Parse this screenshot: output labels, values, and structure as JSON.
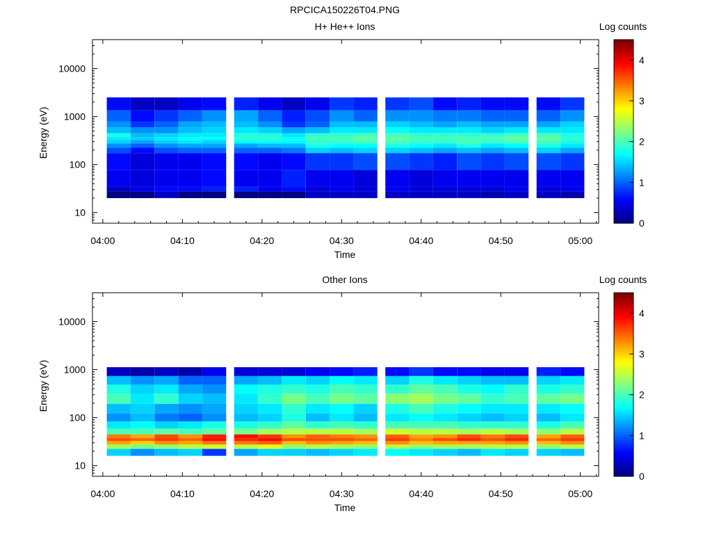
{
  "figure_title": "RPCICA150226T04.PNG",
  "chart_data": [
    {
      "type": "heatmap",
      "title": "H+ He++ Ions",
      "xlabel": "Time",
      "ylabel": "Energy (eV)",
      "y_scale": "log",
      "ylim": [
        6,
        40000
      ],
      "x_ticks": [
        "04:00",
        "04:10",
        "04:20",
        "04:30",
        "04:40",
        "04:50",
        "05:00"
      ],
      "y_ticks": [
        "10",
        "100",
        "1000",
        "10000"
      ],
      "colorbar": {
        "label": "Log counts",
        "ticks": [
          "0",
          "1",
          "2",
          "3",
          "4"
        ],
        "range": [
          0,
          4.5
        ]
      },
      "time_bins": [
        "04:02",
        "04:05",
        "04:08",
        "04:11",
        "04:14",
        "04:18",
        "04:21",
        "04:24",
        "04:27",
        "04:30",
        "04:33",
        "04:37",
        "04:40",
        "04:43",
        "04:46",
        "04:49",
        "04:52",
        "04:56",
        "04:59"
      ],
      "sample_grid": {
        "energy_ev": [
          2000,
          900,
          700,
          500,
          400,
          350,
          300,
          250,
          200,
          150,
          40,
          30,
          25
        ],
        "log_counts": [
          [
            0.6,
            1.0,
            1.2,
            1.4,
            1.8,
            1.6,
            1.5,
            1.2,
            0.9,
            0.6,
            0.5,
            0.3,
            0
          ],
          [
            0.3,
            0.6,
            0.8,
            1.2,
            1.4,
            1.5,
            1.3,
            1.0,
            0.6,
            0.4,
            0.4,
            0.5,
            0
          ],
          [
            0.3,
            0.8,
            1.0,
            1.2,
            1.5,
            1.6,
            1.5,
            1.2,
            0.9,
            0.5,
            0.5,
            0.6,
            0.3
          ],
          [
            0.5,
            1.0,
            1.3,
            1.4,
            1.6,
            1.7,
            1.6,
            1.3,
            1.0,
            0.5,
            0.5,
            0.6,
            0
          ],
          [
            0.6,
            1.2,
            1.4,
            1.5,
            1.6,
            1.7,
            1.5,
            1.3,
            1.0,
            0.6,
            0.6,
            0.7,
            0
          ],
          [
            0.7,
            1.3,
            1.4,
            1.6,
            1.8,
            1.9,
            1.7,
            1.3,
            1.0,
            0.6,
            0.5,
            0.7,
            0
          ],
          [
            0.5,
            1.0,
            1.2,
            1.5,
            1.8,
            1.9,
            1.7,
            1.4,
            1.0,
            0.5,
            0.5,
            0.5,
            0
          ],
          [
            0.3,
            0.7,
            0.8,
            1.3,
            1.6,
            1.7,
            1.7,
            1.4,
            1.1,
            0.6,
            0.7,
            0.6,
            0
          ],
          [
            0.5,
            0.9,
            1.0,
            1.4,
            1.9,
            2.0,
            1.9,
            1.8,
            1.5,
            0.8,
            0.5,
            0.4,
            0.3
          ],
          [
            0.8,
            1.2,
            1.4,
            1.6,
            1.9,
            2.0,
            1.9,
            1.7,
            1.4,
            0.8,
            0.5,
            0.5,
            0.3
          ],
          [
            0.7,
            1.0,
            1.4,
            1.6,
            2.0,
            2.1,
            2.0,
            1.7,
            1.5,
            0.9,
            0.4,
            0.4,
            0.3
          ],
          [
            0.8,
            1.2,
            1.5,
            1.7,
            2.0,
            2.1,
            2.0,
            1.8,
            1.5,
            0.9,
            0.5,
            0.5,
            0.3
          ],
          [
            0.9,
            1.2,
            1.4,
            1.6,
            1.9,
            2.0,
            1.9,
            1.7,
            1.4,
            0.8,
            0.4,
            0.4,
            0.3
          ],
          [
            0.6,
            1.1,
            1.3,
            1.6,
            1.9,
            2.0,
            1.9,
            1.6,
            1.3,
            0.7,
            0.5,
            0.4,
            0.3
          ],
          [
            0.7,
            1.1,
            1.4,
            1.6,
            1.9,
            2.0,
            2.0,
            1.8,
            1.4,
            0.9,
            0.5,
            0.4,
            0.3
          ],
          [
            0.6,
            1.0,
            1.3,
            1.5,
            1.9,
            2.0,
            1.9,
            1.6,
            1.3,
            0.8,
            0.5,
            0.4,
            0.2
          ],
          [
            0.6,
            1.0,
            1.3,
            1.6,
            2.0,
            2.1,
            2.0,
            1.7,
            1.4,
            0.9,
            0.5,
            0.5,
            0.3
          ],
          [
            0.6,
            1.0,
            1.3,
            1.6,
            2.0,
            2.1,
            2.0,
            1.8,
            1.5,
            0.9,
            0.5,
            0.4,
            0.3
          ],
          [
            0.8,
            1.2,
            1.5,
            1.6,
            1.8,
            1.9,
            1.8,
            1.6,
            1.3,
            0.8,
            0.5,
            0.5,
            0.2
          ]
        ]
      }
    },
    {
      "type": "heatmap",
      "title": "Other Ions",
      "xlabel": "Time",
      "ylabel": "Energy (eV)",
      "y_scale": "log",
      "ylim": [
        6,
        40000
      ],
      "x_ticks": [
        "04:00",
        "04:10",
        "04:20",
        "04:30",
        "04:40",
        "04:50",
        "05:00"
      ],
      "y_ticks": [
        "10",
        "100",
        "1000",
        "10000"
      ],
      "colorbar": {
        "label": "Log counts",
        "ticks": [
          "0",
          "1",
          "2",
          "3",
          "4"
        ],
        "range": [
          0,
          4.5
        ]
      },
      "time_bins": [
        "04:02",
        "04:05",
        "04:08",
        "04:11",
        "04:14",
        "04:18",
        "04:21",
        "04:24",
        "04:27",
        "04:30",
        "04:33",
        "04:37",
        "04:40",
        "04:43",
        "04:46",
        "04:49",
        "04:52",
        "04:56",
        "04:59"
      ],
      "sample_grid": {
        "energy_ev": [
          900,
          600,
          400,
          250,
          150,
          100,
          70,
          50,
          40,
          35,
          30,
          25,
          20
        ],
        "log_counts": [
          [
            0.3,
            1.4,
            1.8,
            2.0,
            1.4,
            1.2,
            1.6,
            2.0,
            3.4,
            3.6,
            3.2,
            2.4,
            1.5
          ],
          [
            0.2,
            1.2,
            1.5,
            1.6,
            1.5,
            1.4,
            1.7,
            2.0,
            3.2,
            3.5,
            3.0,
            2.2,
            1.2
          ],
          [
            0.3,
            1.3,
            1.6,
            1.9,
            1.3,
            1.1,
            1.5,
            2.1,
            3.6,
            3.7,
            3.3,
            2.3,
            1.4
          ],
          [
            0.2,
            1.0,
            1.3,
            1.5,
            1.2,
            1.0,
            1.6,
            2.0,
            3.3,
            3.5,
            3.2,
            2.5,
            1.5
          ],
          [
            0.5,
            1.0,
            1.2,
            1.4,
            1.3,
            1.2,
            1.8,
            2.1,
            3.8,
            3.9,
            3.4,
            2.6,
            0.8
          ],
          [
            0.4,
            1.3,
            1.7,
            1.6,
            1.5,
            1.4,
            1.8,
            2.2,
            3.9,
            3.8,
            3.4,
            2.5,
            1.3
          ],
          [
            0.4,
            1.4,
            1.8,
            1.9,
            1.6,
            1.5,
            1.9,
            2.4,
            3.7,
            3.9,
            3.5,
            2.7,
            1.5
          ],
          [
            0.4,
            1.6,
            1.9,
            2.2,
            1.9,
            1.8,
            2.1,
            2.5,
            3.3,
            3.6,
            3.1,
            2.3,
            1.5
          ],
          [
            0.5,
            1.5,
            1.8,
            2.0,
            1.6,
            1.4,
            1.9,
            2.5,
            3.5,
            3.6,
            3.3,
            2.5,
            1.4
          ],
          [
            0.6,
            1.7,
            2.0,
            2.2,
            1.7,
            1.6,
            2.0,
            2.5,
            3.4,
            3.6,
            3.2,
            2.4,
            1.5
          ],
          [
            0.7,
            1.6,
            1.9,
            2.1,
            1.5,
            1.4,
            1.9,
            2.4,
            3.3,
            3.5,
            3.1,
            2.3,
            1.6
          ],
          [
            0.6,
            1.5,
            1.9,
            2.3,
            1.8,
            1.6,
            2.0,
            2.6,
            3.5,
            3.7,
            3.3,
            2.5,
            1.7
          ],
          [
            0.8,
            1.8,
            2.1,
            2.4,
            2.0,
            1.7,
            2.0,
            2.5,
            3.2,
            3.4,
            3.1,
            2.3,
            1.6
          ],
          [
            0.6,
            1.6,
            2.0,
            2.2,
            1.8,
            1.6,
            2.0,
            2.5,
            3.3,
            3.6,
            3.2,
            2.4,
            1.5
          ],
          [
            0.6,
            1.5,
            1.8,
            2.1,
            1.7,
            1.5,
            1.9,
            2.4,
            3.6,
            3.8,
            3.2,
            2.4,
            1.4
          ],
          [
            0.5,
            1.4,
            1.7,
            1.9,
            1.6,
            1.4,
            1.9,
            2.5,
            3.4,
            3.6,
            3.2,
            2.5,
            1.6
          ],
          [
            0.5,
            1.4,
            1.9,
            2.0,
            1.6,
            1.5,
            1.9,
            2.4,
            3.6,
            3.8,
            3.3,
            2.5,
            1.5
          ],
          [
            0.7,
            1.5,
            1.8,
            2.1,
            1.6,
            1.4,
            1.8,
            2.3,
            3.2,
            3.5,
            3.1,
            2.3,
            1.5
          ],
          [
            0.6,
            1.6,
            1.9,
            2.2,
            1.7,
            1.6,
            2.0,
            2.5,
            3.5,
            3.7,
            3.3,
            2.5,
            1.4
          ]
        ]
      }
    }
  ]
}
